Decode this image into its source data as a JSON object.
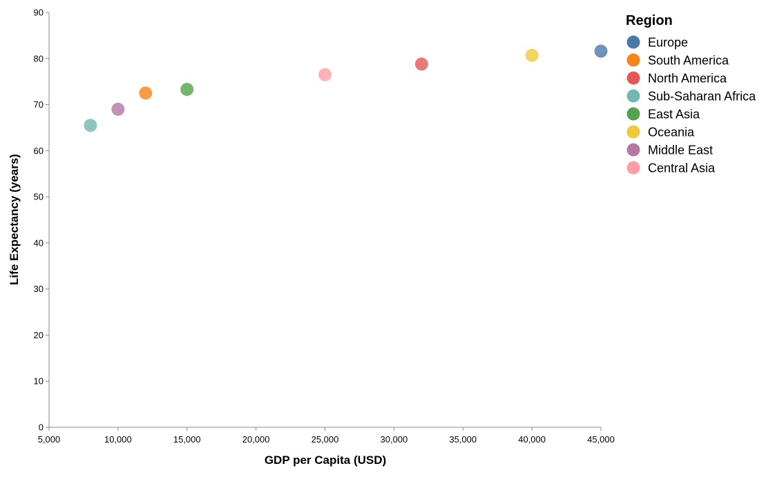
{
  "chart_data": {
    "type": "scatter",
    "title": "",
    "xlabel": "GDP per Capita (USD)",
    "ylabel": "Life Expectancy (years)",
    "xlim": [
      5000,
      45000
    ],
    "ylim": [
      0,
      90
    ],
    "x_ticks": [
      "5,000",
      "10,000",
      "15,000",
      "20,000",
      "25,000",
      "30,000",
      "35,000",
      "40,000",
      "45,000"
    ],
    "y_ticks": [
      "0",
      "10",
      "20",
      "30",
      "40",
      "50",
      "60",
      "70",
      "80",
      "90"
    ],
    "grid": false,
    "legend": {
      "title": "Region",
      "placement": "top-right",
      "entries": [
        {
          "name": "Europe",
          "color": "#4c78a8"
        },
        {
          "name": "South America",
          "color": "#f58518"
        },
        {
          "name": "North America",
          "color": "#e45756"
        },
        {
          "name": "Sub-Saharan Africa",
          "color": "#72b7b2"
        },
        {
          "name": "East Asia",
          "color": "#54a24b"
        },
        {
          "name": "Oceania",
          "color": "#eeca3b"
        },
        {
          "name": "Middle East",
          "color": "#b279a2"
        },
        {
          "name": "Central Asia",
          "color": "#ff9da6"
        }
      ]
    },
    "points": [
      {
        "region": "Sub-Saharan Africa",
        "x": 8000,
        "y": 65.5
      },
      {
        "region": "Middle East",
        "x": 10000,
        "y": 69
      },
      {
        "region": "South America",
        "x": 12000,
        "y": 72.5
      },
      {
        "region": "East Asia",
        "x": 15000,
        "y": 73.3
      },
      {
        "region": "Central Asia",
        "x": 25000,
        "y": 76.5
      },
      {
        "region": "North America",
        "x": 32000,
        "y": 78.8
      },
      {
        "region": "Oceania",
        "x": 40000,
        "y": 80.7
      },
      {
        "region": "Europe",
        "x": 45000,
        "y": 81.6
      }
    ]
  }
}
